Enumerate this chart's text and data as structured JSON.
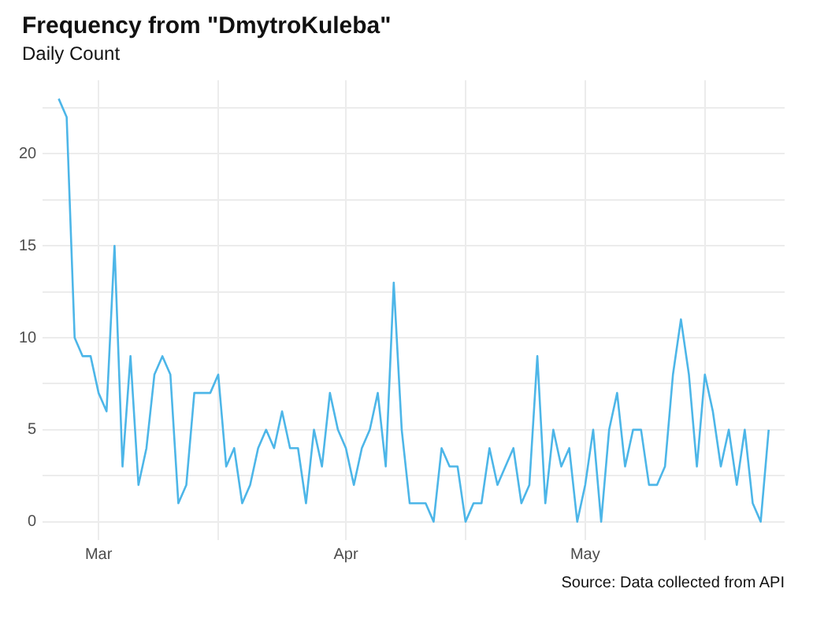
{
  "chart_data": {
    "type": "line",
    "title": "Frequency from \"DmytroKuleba\"",
    "subtitle": "Daily Count",
    "annotations": [
      "Source: Data collected from API"
    ],
    "x": [
      "--02-24",
      "--02-25",
      "--02-26",
      "--02-27",
      "--02-28",
      "--03-01",
      "--03-02",
      "--03-03",
      "--03-04",
      "--03-05",
      "--03-06",
      "--03-07",
      "--03-08",
      "--03-09",
      "--03-10",
      "--03-11",
      "--03-12",
      "--03-13",
      "--03-14",
      "--03-15",
      "--03-16",
      "--03-17",
      "--03-18",
      "--03-19",
      "--03-20",
      "--03-21",
      "--03-22",
      "--03-23",
      "--03-24",
      "--03-25",
      "--03-26",
      "--03-27",
      "--03-28",
      "--03-29",
      "--03-30",
      "--03-31",
      "--04-01",
      "--04-02",
      "--04-03",
      "--04-04",
      "--04-05",
      "--04-06",
      "--04-07",
      "--04-08",
      "--04-09",
      "--04-10",
      "--04-11",
      "--04-12",
      "--04-13",
      "--04-14",
      "--04-15",
      "--04-16",
      "--04-17",
      "--04-18",
      "--04-19",
      "--04-20",
      "--04-21",
      "--04-22",
      "--04-23",
      "--04-24",
      "--04-25",
      "--04-26",
      "--04-27",
      "--04-28",
      "--04-29",
      "--04-30",
      "--05-01",
      "--05-02",
      "--05-03",
      "--05-04",
      "--05-05",
      "--05-06",
      "--05-07",
      "--05-08",
      "--05-09",
      "--05-10",
      "--05-11",
      "--05-12",
      "--05-13",
      "--05-14",
      "--05-15",
      "--05-16",
      "--05-17",
      "--05-18",
      "--05-19",
      "--05-20",
      "--05-21",
      "--05-22",
      "--05-23",
      "--05-24"
    ],
    "series": [
      {
        "color": "#4db6e8",
        "values": [
          23,
          22,
          10,
          9,
          9,
          7,
          6,
          15,
          3,
          9,
          2,
          4,
          8,
          9,
          8,
          1,
          2,
          7,
          7,
          7,
          8,
          3,
          4,
          1,
          2,
          4,
          5,
          4,
          6,
          4,
          4,
          1,
          5,
          3,
          7,
          5,
          4,
          2,
          4,
          5,
          7,
          3,
          13,
          5,
          1,
          1,
          1,
          0,
          4,
          3,
          3,
          0,
          1,
          1,
          4,
          2,
          3,
          4,
          1,
          2,
          9,
          1,
          5,
          3,
          4,
          0,
          2,
          5,
          0,
          5,
          7,
          3,
          5,
          5,
          2,
          2,
          3,
          8,
          11,
          8,
          3,
          8,
          6,
          3,
          5,
          2,
          5,
          1,
          0,
          5
        ]
      }
    ],
    "xlim": [
      "--02-22",
      "--05-26"
    ],
    "xticks": [
      {
        "value": "--03-01",
        "label": "Mar"
      },
      {
        "value": "--03-16",
        "label": null
      },
      {
        "value": "--04-01",
        "label": "Apr"
      },
      {
        "value": "--04-16",
        "label": null
      },
      {
        "value": "--05-01",
        "label": "May"
      },
      {
        "value": "--05-16",
        "label": null
      }
    ],
    "ylim": [
      -1,
      24
    ],
    "yticks": [
      0,
      {
        "value": 2.5,
        "label": null
      },
      5,
      {
        "value": 7.5,
        "label": null
      },
      10,
      {
        "value": 12.5,
        "label": null
      },
      15,
      {
        "value": 17.5,
        "label": null
      },
      20,
      {
        "value": 22.5,
        "label": null
      }
    ],
    "grid": true,
    "legend": false,
    "marker": "none",
    "line_style": "solid"
  }
}
